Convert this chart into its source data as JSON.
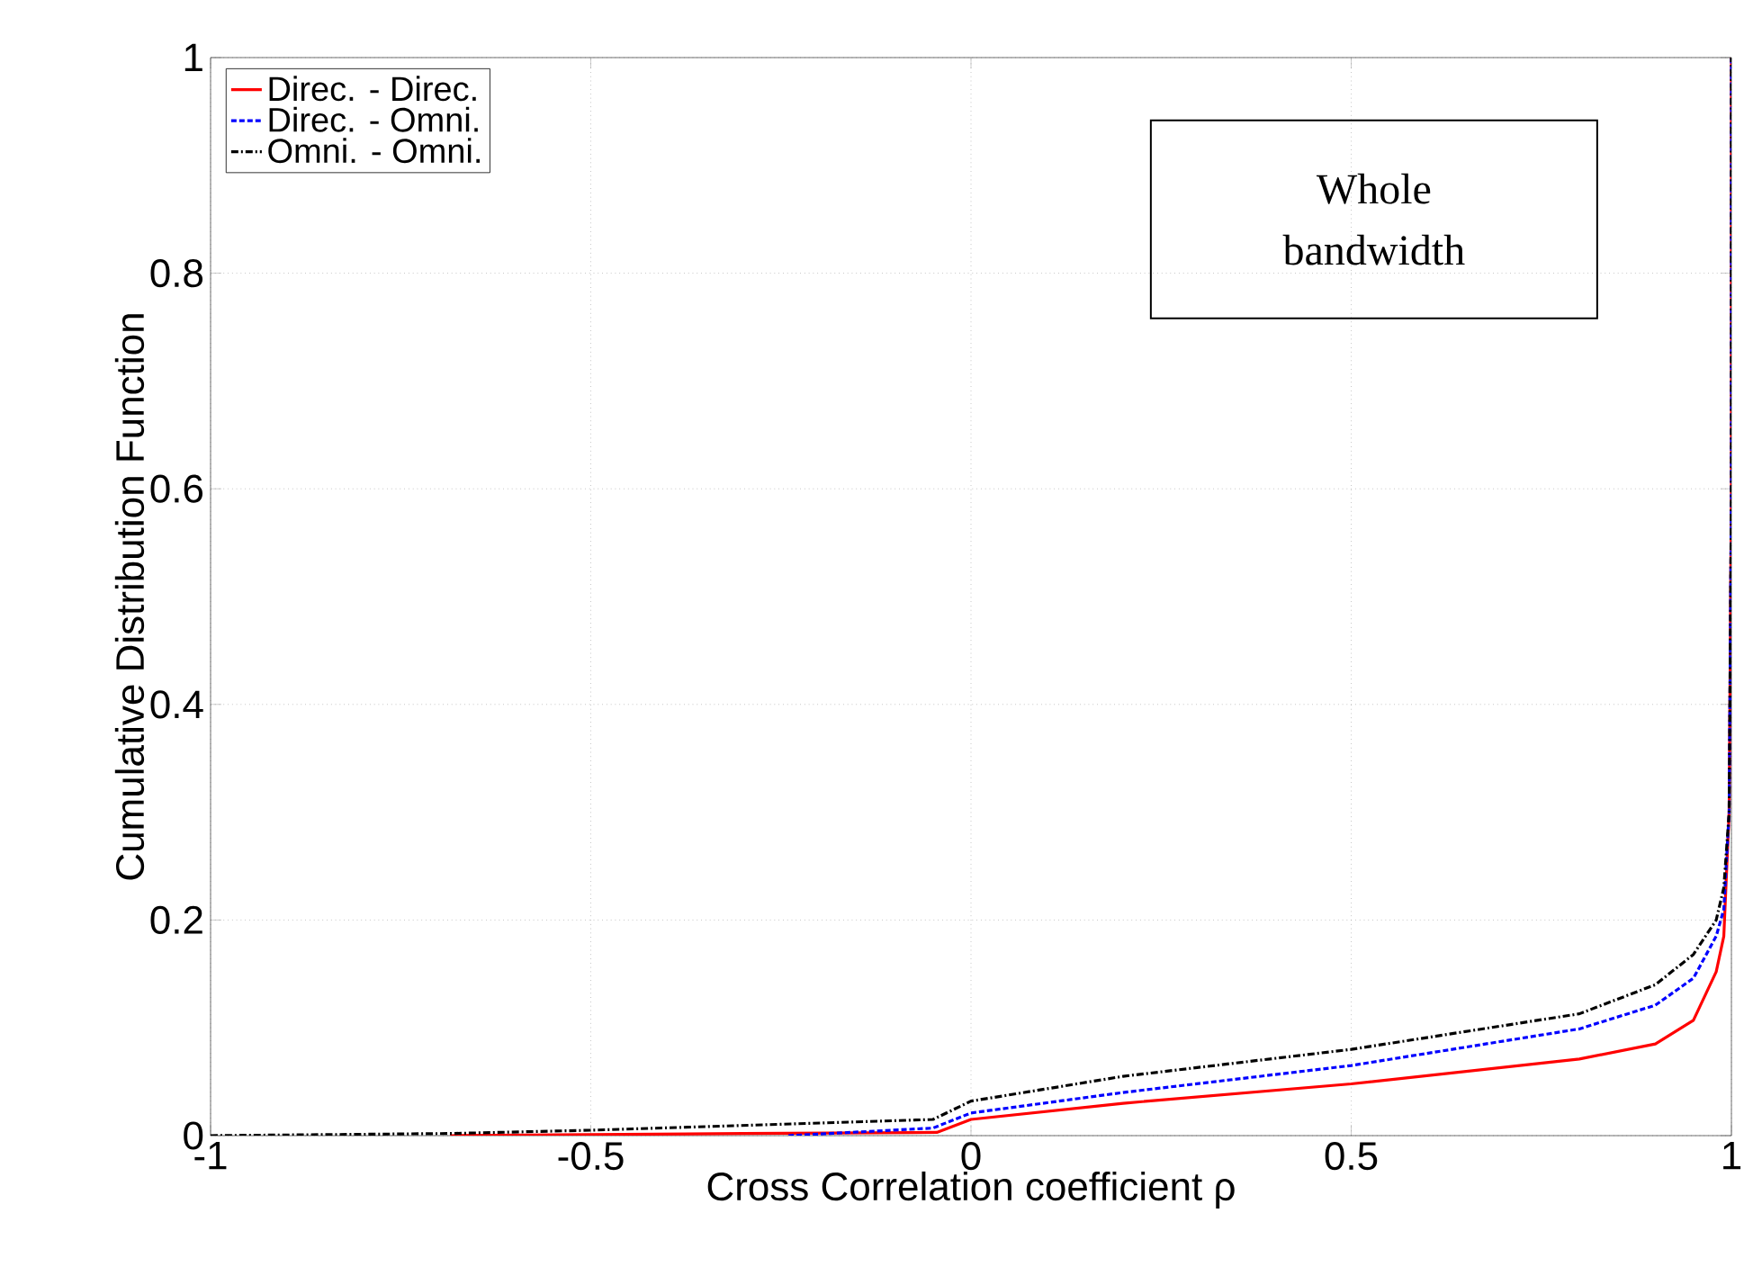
{
  "chart_data": {
    "type": "line",
    "xlabel": "Cross Correlation coefficient ρ",
    "ylabel": "Cumulative Distribution Function",
    "xlim": [
      -1,
      1
    ],
    "ylim": [
      0,
      1
    ],
    "xticks": [
      -1,
      -0.5,
      0,
      0.5,
      1
    ],
    "yticks": [
      0,
      0.2,
      0.4,
      0.6,
      0.8,
      1
    ],
    "grid": true,
    "legend": "top left",
    "annotations": [
      "Whole bandwidth"
    ],
    "series": [
      {
        "name": "Direc. - Direc.",
        "color": "#ff0000",
        "line_style": "solid",
        "x": [
          -0.685,
          -0.3,
          -0.045,
          0,
          0.2,
          0.5,
          0.8,
          0.9,
          0.95,
          0.98,
          0.99,
          0.997,
          1,
          1
        ],
        "values": [
          0,
          0.002,
          0.003,
          0.015,
          0.03,
          0.048,
          0.071,
          0.085,
          0.107,
          0.152,
          0.185,
          0.3,
          0.6,
          1
        ]
      },
      {
        "name": "Direc. - Omni.",
        "color": "#0000ff",
        "line_style": "dashed",
        "x": [
          -0.24,
          -0.05,
          0,
          0.2,
          0.5,
          0.8,
          0.9,
          0.95,
          0.98,
          0.99,
          0.997,
          1,
          1
        ],
        "values": [
          0,
          0.007,
          0.021,
          0.04,
          0.065,
          0.099,
          0.121,
          0.146,
          0.185,
          0.21,
          0.3,
          0.6,
          1
        ]
      },
      {
        "name": "Omni. - Omni.",
        "color": "#000000",
        "line_style": "dashdot",
        "x": [
          -1,
          -0.68,
          -0.5,
          -0.05,
          0,
          0.2,
          0.5,
          0.8,
          0.9,
          0.95,
          0.98,
          0.99,
          0.997,
          1,
          1
        ],
        "values": [
          0,
          0.002,
          0.005,
          0.015,
          0.032,
          0.055,
          0.08,
          0.113,
          0.14,
          0.168,
          0.2,
          0.23,
          0.3,
          0.6,
          1
        ]
      }
    ]
  }
}
